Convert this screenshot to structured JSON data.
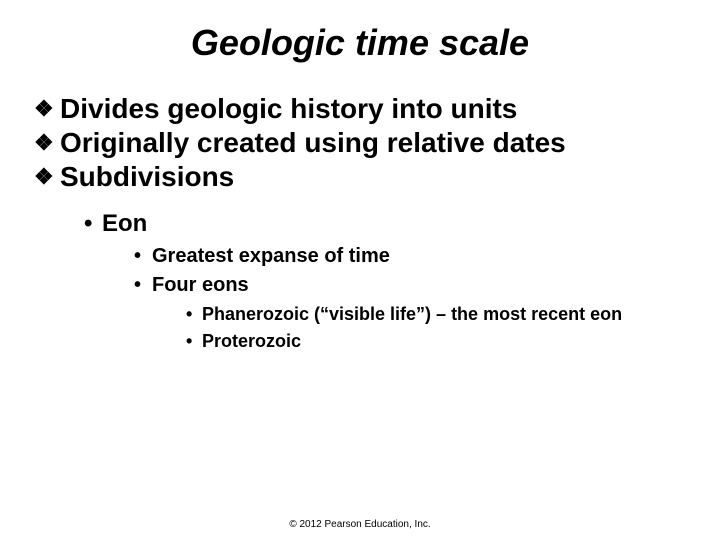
{
  "title": "Geologic time scale",
  "bullets": {
    "b1": "Divides geologic history into units",
    "b2": "Originally created using relative dates",
    "b3": "Subdivisions"
  },
  "sub1": "Eon",
  "sub2a": "Greatest expanse of time",
  "sub2b": "Four eons",
  "sub3a": "Phanerozoic (“visible life”) – the most recent eon",
  "sub3b": "Proterozoic",
  "copyright": "© 2012 Pearson Education, Inc.",
  "glyphs": {
    "diamond": "❖",
    "dot": "•"
  },
  "colors": {
    "text": "#000000",
    "background": "#ffffff"
  },
  "fontsize": {
    "title": 36,
    "lvl1": 28,
    "lvl2": 24,
    "lvl3": 20,
    "lvl4": 18,
    "copyright": 10
  }
}
